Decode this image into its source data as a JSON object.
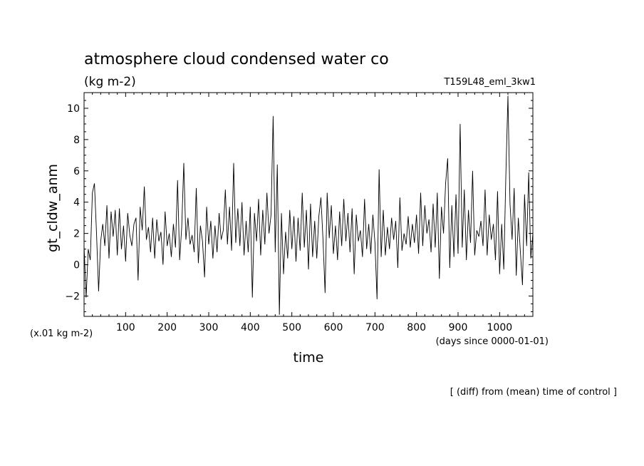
{
  "chart_data": {
    "type": "line",
    "title": "atmosphere cloud condensed water co",
    "units": "(kg m-2)",
    "run_label": "T159L48_eml_3kw1",
    "xlabel": "time",
    "ylabel": "gt_cldw_anm",
    "x_unit_note": "(days since 0000-01-01)",
    "y_scale_note": "(x.01 kg m-2)",
    "footer": "[ (diff) from (mean) time of control ]",
    "xlim": [
      0,
      1080
    ],
    "ylim": [
      -3.3,
      11
    ],
    "x_ticks": [
      100,
      200,
      300,
      400,
      500,
      600,
      700,
      800,
      900,
      1000
    ],
    "y_ticks": [
      -2,
      0,
      2,
      4,
      6,
      8,
      10
    ],
    "grid": false,
    "series": [
      {
        "values": [
          [
            0,
            1.2
          ],
          [
            5,
            -2.1
          ],
          [
            10,
            1.0
          ],
          [
            15,
            0.3
          ],
          [
            20,
            4.6
          ],
          [
            25,
            5.2
          ],
          [
            30,
            2.0
          ],
          [
            35,
            -1.7
          ],
          [
            40,
            1.5
          ],
          [
            45,
            2.6
          ],
          [
            50,
            1.2
          ],
          [
            55,
            3.8
          ],
          [
            60,
            0.4
          ],
          [
            65,
            3.4
          ],
          [
            70,
            1.8
          ],
          [
            75,
            3.5
          ],
          [
            80,
            0.6
          ],
          [
            85,
            3.6
          ],
          [
            90,
            1.0
          ],
          [
            95,
            2.5
          ],
          [
            100,
            0.2
          ],
          [
            105,
            3.3
          ],
          [
            110,
            1.9
          ],
          [
            115,
            1.2
          ],
          [
            120,
            2.6
          ],
          [
            125,
            3.0
          ],
          [
            130,
            -1.0
          ],
          [
            135,
            3.7
          ],
          [
            140,
            2.2
          ],
          [
            145,
            5.0
          ],
          [
            150,
            1.6
          ],
          [
            155,
            2.4
          ],
          [
            160,
            0.8
          ],
          [
            165,
            3.0
          ],
          [
            170,
            0.4
          ],
          [
            175,
            2.9
          ],
          [
            180,
            1.5
          ],
          [
            185,
            2.1
          ],
          [
            190,
            0.0
          ],
          [
            195,
            3.4
          ],
          [
            200,
            1.2
          ],
          [
            205,
            2.0
          ],
          [
            210,
            0.5
          ],
          [
            215,
            2.6
          ],
          [
            220,
            1.1
          ],
          [
            225,
            5.4
          ],
          [
            230,
            0.3
          ],
          [
            235,
            2.4
          ],
          [
            240,
            6.5
          ],
          [
            245,
            1.6
          ],
          [
            250,
            3.0
          ],
          [
            255,
            1.3
          ],
          [
            260,
            1.9
          ],
          [
            265,
            0.8
          ],
          [
            270,
            4.9
          ],
          [
            275,
            0.1
          ],
          [
            280,
            2.5
          ],
          [
            285,
            1.5
          ],
          [
            290,
            -0.8
          ],
          [
            295,
            3.7
          ],
          [
            300,
            1.3
          ],
          [
            305,
            2.8
          ],
          [
            310,
            0.4
          ],
          [
            315,
            2.5
          ],
          [
            320,
            0.8
          ],
          [
            325,
            3.3
          ],
          [
            330,
            1.6
          ],
          [
            335,
            2.2
          ],
          [
            340,
            4.8
          ],
          [
            345,
            1.3
          ],
          [
            350,
            3.7
          ],
          [
            355,
            0.9
          ],
          [
            360,
            6.5
          ],
          [
            365,
            1.4
          ],
          [
            370,
            3.6
          ],
          [
            375,
            1.2
          ],
          [
            380,
            4.0
          ],
          [
            385,
            0.6
          ],
          [
            390,
            2.8
          ],
          [
            395,
            0.8
          ],
          [
            400,
            3.7
          ],
          [
            405,
            -2.1
          ],
          [
            410,
            3.3
          ],
          [
            415,
            1.5
          ],
          [
            420,
            4.2
          ],
          [
            425,
            0.6
          ],
          [
            430,
            3.5
          ],
          [
            435,
            1.3
          ],
          [
            440,
            4.6
          ],
          [
            445,
            2.0
          ],
          [
            450,
            3.2
          ],
          [
            455,
            9.5
          ],
          [
            460,
            0.8
          ],
          [
            465,
            6.4
          ],
          [
            470,
            -3.2
          ],
          [
            475,
            3.3
          ],
          [
            480,
            -0.6
          ],
          [
            485,
            2.1
          ],
          [
            490,
            0.4
          ],
          [
            495,
            3.5
          ],
          [
            500,
            1.0
          ],
          [
            505,
            3.1
          ],
          [
            510,
            0.2
          ],
          [
            515,
            3.0
          ],
          [
            520,
            0.9
          ],
          [
            525,
            4.6
          ],
          [
            530,
            1.1
          ],
          [
            535,
            3.5
          ],
          [
            540,
            -0.3
          ],
          [
            545,
            3.9
          ],
          [
            550,
            0.5
          ],
          [
            555,
            2.8
          ],
          [
            560,
            0.4
          ],
          [
            565,
            3.1
          ],
          [
            570,
            4.3
          ],
          [
            575,
            1.6
          ],
          [
            580,
            -1.8
          ],
          [
            585,
            4.6
          ],
          [
            590,
            1.7
          ],
          [
            595,
            3.8
          ],
          [
            600,
            0.7
          ],
          [
            605,
            2.5
          ],
          [
            610,
            0.3
          ],
          [
            615,
            3.4
          ],
          [
            620,
            1.2
          ],
          [
            625,
            4.2
          ],
          [
            630,
            1.5
          ],
          [
            635,
            3.3
          ],
          [
            640,
            0.8
          ],
          [
            645,
            3.6
          ],
          [
            650,
            -0.6
          ],
          [
            655,
            3.2
          ],
          [
            660,
            1.5
          ],
          [
            665,
            2.2
          ],
          [
            670,
            0.5
          ],
          [
            675,
            4.2
          ],
          [
            680,
            1.0
          ],
          [
            685,
            2.6
          ],
          [
            690,
            0.7
          ],
          [
            695,
            3.2
          ],
          [
            700,
            1.4
          ],
          [
            705,
            -2.2
          ],
          [
            710,
            6.1
          ],
          [
            715,
            0.5
          ],
          [
            720,
            3.5
          ],
          [
            725,
            0.6
          ],
          [
            730,
            2.4
          ],
          [
            735,
            1.0
          ],
          [
            740,
            3.0
          ],
          [
            745,
            1.6
          ],
          [
            750,
            2.8
          ],
          [
            755,
            -0.2
          ],
          [
            760,
            4.3
          ],
          [
            765,
            0.9
          ],
          [
            770,
            2.0
          ],
          [
            775,
            1.3
          ],
          [
            780,
            3.1
          ],
          [
            785,
            1.1
          ],
          [
            790,
            2.6
          ],
          [
            795,
            1.4
          ],
          [
            800,
            3.2
          ],
          [
            805,
            0.7
          ],
          [
            810,
            4.6
          ],
          [
            815,
            1.2
          ],
          [
            820,
            3.8
          ],
          [
            825,
            2.0
          ],
          [
            830,
            2.9
          ],
          [
            835,
            0.8
          ],
          [
            840,
            3.9
          ],
          [
            845,
            1.1
          ],
          [
            850,
            4.6
          ],
          [
            855,
            -0.9
          ],
          [
            860,
            3.7
          ],
          [
            865,
            2.0
          ],
          [
            870,
            5.2
          ],
          [
            875,
            6.8
          ],
          [
            880,
            -0.2
          ],
          [
            885,
            3.8
          ],
          [
            890,
            0.5
          ],
          [
            895,
            4.5
          ],
          [
            900,
            0.7
          ],
          [
            905,
            9.0
          ],
          [
            910,
            1.1
          ],
          [
            915,
            4.8
          ],
          [
            920,
            0.3
          ],
          [
            925,
            3.5
          ],
          [
            930,
            1.4
          ],
          [
            935,
            6.0
          ],
          [
            940,
            0.6
          ],
          [
            945,
            2.2
          ],
          [
            950,
            1.8
          ],
          [
            955,
            2.8
          ],
          [
            960,
            1.2
          ],
          [
            965,
            4.8
          ],
          [
            970,
            0.6
          ],
          [
            975,
            3.2
          ],
          [
            980,
            1.6
          ],
          [
            985,
            2.6
          ],
          [
            990,
            0.3
          ],
          [
            995,
            4.7
          ],
          [
            1000,
            -0.6
          ],
          [
            1005,
            2.6
          ],
          [
            1010,
            -0.3
          ],
          [
            1015,
            5.7
          ],
          [
            1020,
            10.8
          ],
          [
            1025,
            3.9
          ],
          [
            1030,
            1.6
          ],
          [
            1035,
            4.9
          ],
          [
            1040,
            -0.7
          ],
          [
            1045,
            3.0
          ],
          [
            1050,
            0.8
          ],
          [
            1055,
            -1.3
          ],
          [
            1060,
            4.5
          ],
          [
            1065,
            1.2
          ],
          [
            1070,
            5.9
          ],
          [
            1075,
            0.4
          ],
          [
            1080,
            2.0
          ]
        ]
      }
    ]
  }
}
